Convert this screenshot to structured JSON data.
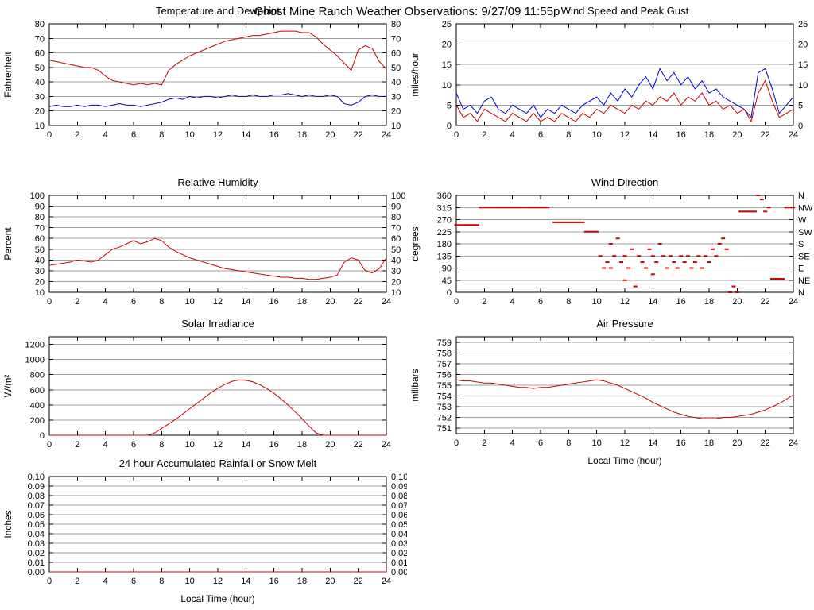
{
  "page": {
    "title": "Ghost Mine Ranch Weather Observations: 9/27/09 11:55p"
  },
  "colors": {
    "red_series": "#cc0000",
    "blue_series": "#0000b4",
    "grid": "#9f9f9f",
    "axis": "#000000"
  },
  "chart_data": [
    {
      "id": "temperature-dewpoint",
      "type": "line",
      "title": "Temperature and Dewpoint",
      "ylabel": "Fahrenheit",
      "xlabel": "",
      "xlim": [
        0,
        24
      ],
      "xticks": [
        0,
        2,
        4,
        6,
        8,
        10,
        12,
        14,
        16,
        18,
        20,
        22,
        24
      ],
      "ylim": [
        10,
        80
      ],
      "yticks": [
        10,
        20,
        30,
        40,
        50,
        60,
        70,
        80
      ],
      "right_labels": "mirror",
      "grid": true,
      "series": [
        {
          "name": "temperature",
          "color": "#cc0000",
          "x_start": 0,
          "x_step": 0.5,
          "y": [
            55,
            54,
            53,
            52,
            51,
            50,
            50,
            48,
            44,
            41,
            40,
            39,
            38,
            39,
            38,
            39,
            38,
            48,
            52,
            55,
            58,
            60,
            62,
            64,
            66,
            68,
            69,
            70,
            71,
            72,
            72,
            73,
            74,
            75,
            75,
            75,
            74,
            74,
            71,
            66,
            62,
            58,
            53,
            48,
            62,
            65,
            63,
            54,
            49
          ]
        },
        {
          "name": "dewpoint",
          "color": "#0000b4",
          "x_start": 0,
          "x_step": 0.5,
          "y": [
            23,
            24,
            23,
            23,
            24,
            23,
            24,
            24,
            23,
            24,
            25,
            24,
            24,
            23,
            24,
            25,
            26,
            28,
            29,
            28,
            30,
            29,
            30,
            30,
            29,
            30,
            31,
            30,
            30,
            31,
            30,
            30,
            31,
            31,
            32,
            31,
            30,
            31,
            30,
            30,
            31,
            30,
            25,
            24,
            26,
            30,
            31,
            30,
            30
          ]
        }
      ]
    },
    {
      "id": "wind-speed-gust",
      "type": "line",
      "title": "Wind Speed and Peak Gust",
      "ylabel": "miles/hour",
      "xlabel": "",
      "xlim": [
        0,
        24
      ],
      "xticks": [
        0,
        2,
        4,
        6,
        8,
        10,
        12,
        14,
        16,
        18,
        20,
        22,
        24
      ],
      "ylim": [
        0,
        25
      ],
      "yticks": [
        0,
        5,
        10,
        15,
        20,
        25
      ],
      "right_labels": "mirror",
      "grid": true,
      "series": [
        {
          "name": "peak-gust",
          "color": "#0000cc",
          "x_start": 0,
          "x_step": 0.5,
          "y": [
            8,
            4,
            5,
            3,
            6,
            7,
            4,
            3,
            5,
            4,
            3,
            5,
            2,
            4,
            3,
            5,
            4,
            3,
            5,
            6,
            7,
            5,
            8,
            6,
            9,
            7,
            10,
            12,
            9,
            14,
            11,
            13,
            10,
            12,
            9,
            11,
            8,
            9,
            7,
            6,
            5,
            4,
            2,
            13,
            14,
            9,
            3,
            5,
            7
          ]
        },
        {
          "name": "wind-speed",
          "color": "#cc0000",
          "x_start": 0,
          "x_step": 0.5,
          "y": [
            5,
            2,
            3,
            1,
            4,
            3,
            2,
            1,
            3,
            2,
            1,
            3,
            1,
            2,
            1,
            3,
            2,
            1,
            3,
            2,
            4,
            3,
            5,
            4,
            3,
            5,
            4,
            6,
            5,
            7,
            6,
            8,
            5,
            7,
            6,
            8,
            5,
            6,
            4,
            5,
            3,
            4,
            1,
            8,
            11,
            6,
            2,
            3,
            4
          ]
        }
      ]
    },
    {
      "id": "relative-humidity",
      "type": "line",
      "title": "Relative Humidity",
      "ylabel": "Percent",
      "xlabel": "",
      "xlim": [
        0,
        24
      ],
      "xticks": [
        0,
        2,
        4,
        6,
        8,
        10,
        12,
        14,
        16,
        18,
        20,
        22,
        24
      ],
      "ylim": [
        10,
        100
      ],
      "yticks": [
        10,
        20,
        30,
        40,
        50,
        60,
        70,
        80,
        90,
        100
      ],
      "right_labels": "mirror",
      "grid": true,
      "series": [
        {
          "name": "humidity",
          "color": "#cc0000",
          "x_start": 0,
          "x_step": 0.5,
          "y": [
            35,
            36,
            37,
            38,
            40,
            39,
            38,
            40,
            45,
            50,
            52,
            55,
            58,
            55,
            57,
            60,
            58,
            52,
            48,
            45,
            42,
            40,
            38,
            36,
            34,
            32,
            31,
            30,
            29,
            28,
            27,
            26,
            25,
            24,
            24,
            23,
            23,
            22,
            22,
            23,
            24,
            26,
            38,
            42,
            40,
            30,
            28,
            32,
            42
          ]
        }
      ]
    },
    {
      "id": "wind-direction",
      "type": "scatter",
      "title": "Wind Direction",
      "ylabel": "degrees",
      "xlabel": "",
      "xlim": [
        0,
        24
      ],
      "xticks": [
        0,
        2,
        4,
        6,
        8,
        10,
        12,
        14,
        16,
        18,
        20,
        22,
        24
      ],
      "ylim": [
        0,
        360
      ],
      "yticks": [
        0,
        45,
        90,
        135,
        180,
        225,
        270,
        315,
        360
      ],
      "right_labels": {
        "ticks": [
          360,
          315,
          270,
          225,
          180,
          135,
          90,
          45,
          0
        ],
        "labels": [
          "N",
          "NW",
          "W",
          "SW",
          "S",
          "SE",
          "E",
          "NE",
          "N"
        ]
      },
      "grid": true,
      "series": [
        {
          "name": "direction",
          "color": "#cc0000",
          "points": [
            [
              0,
              250
            ],
            [
              0.25,
              250
            ],
            [
              0.5,
              250
            ],
            [
              0.75,
              250
            ],
            [
              1,
              250
            ],
            [
              1.25,
              250
            ],
            [
              1.5,
              250
            ],
            [
              1.75,
              315
            ],
            [
              2,
              315
            ],
            [
              2.25,
              315
            ],
            [
              2.5,
              315
            ],
            [
              2.75,
              315
            ],
            [
              3,
              315
            ],
            [
              3.25,
              315
            ],
            [
              3.5,
              315
            ],
            [
              3.75,
              315
            ],
            [
              4,
              315
            ],
            [
              4.25,
              315
            ],
            [
              4.5,
              315
            ],
            [
              4.75,
              315
            ],
            [
              5,
              315
            ],
            [
              5.25,
              315
            ],
            [
              5.5,
              315
            ],
            [
              5.75,
              315
            ],
            [
              6,
              315
            ],
            [
              6.25,
              315
            ],
            [
              6.5,
              315
            ],
            [
              7,
              260
            ],
            [
              7.25,
              260
            ],
            [
              7.5,
              260
            ],
            [
              7.75,
              260
            ],
            [
              8,
              260
            ],
            [
              8.25,
              260
            ],
            [
              8.5,
              260
            ],
            [
              8.75,
              260
            ],
            [
              9,
              260
            ],
            [
              9.25,
              225
            ],
            [
              9.5,
              225
            ],
            [
              9.75,
              225
            ],
            [
              10,
              225
            ],
            [
              10.25,
              135
            ],
            [
              10.5,
              90
            ],
            [
              10.75,
              112
            ],
            [
              11,
              180
            ],
            [
              11,
              90
            ],
            [
              11.25,
              135
            ],
            [
              11.5,
              200
            ],
            [
              11.75,
              112
            ],
            [
              12,
              135
            ],
            [
              12,
              45
            ],
            [
              12.25,
              90
            ],
            [
              12.5,
              160
            ],
            [
              12.75,
              22
            ],
            [
              13,
              135
            ],
            [
              13.25,
              112
            ],
            [
              13.5,
              90
            ],
            [
              13.75,
              160
            ],
            [
              14,
              135
            ],
            [
              14,
              67
            ],
            [
              14.25,
              112
            ],
            [
              14.5,
              180
            ],
            [
              14.75,
              135
            ],
            [
              15,
              90
            ],
            [
              15.25,
              135
            ],
            [
              15.5,
              112
            ],
            [
              15.75,
              90
            ],
            [
              16,
              135
            ],
            [
              16.25,
              112
            ],
            [
              16.5,
              135
            ],
            [
              16.75,
              90
            ],
            [
              17,
              112
            ],
            [
              17.25,
              135
            ],
            [
              17.5,
              90
            ],
            [
              17.75,
              135
            ],
            [
              18,
              112
            ],
            [
              18.25,
              160
            ],
            [
              18.5,
              135
            ],
            [
              18.75,
              180
            ],
            [
              19,
              200
            ],
            [
              19.25,
              160
            ],
            [
              19.5,
              0
            ],
            [
              19.75,
              22
            ],
            [
              20,
              0
            ],
            [
              20.25,
              300
            ],
            [
              20.5,
              300
            ],
            [
              20.75,
              300
            ],
            [
              21,
              300
            ],
            [
              21.25,
              300
            ],
            [
              21.5,
              360
            ],
            [
              21.75,
              345
            ],
            [
              22,
              300
            ],
            [
              22.25,
              315
            ],
            [
              22.5,
              50
            ],
            [
              22.75,
              50
            ],
            [
              23,
              50
            ],
            [
              23.25,
              50
            ],
            [
              23.5,
              315
            ],
            [
              23.75,
              315
            ],
            [
              24,
              315
            ]
          ]
        }
      ]
    },
    {
      "id": "solar-irradiance",
      "type": "line",
      "title": "Solar Irradiance",
      "ylabel": "W/m²",
      "xlabel": "",
      "xlim": [
        0,
        24
      ],
      "xticks": [
        0,
        2,
        4,
        6,
        8,
        10,
        12,
        14,
        16,
        18,
        20,
        22,
        24
      ],
      "ylim": [
        0,
        1300
      ],
      "yticks": [
        0,
        200,
        400,
        600,
        800,
        1000,
        1200
      ],
      "right_labels": null,
      "grid": true,
      "series": [
        {
          "name": "irradiance",
          "color": "#cc0000",
          "x_start": 0,
          "x_step": 0.5,
          "y": [
            0,
            0,
            0,
            0,
            0,
            0,
            0,
            0,
            0,
            0,
            0,
            0,
            0,
            0,
            0,
            30,
            90,
            150,
            210,
            280,
            350,
            420,
            490,
            560,
            620,
            670,
            710,
            730,
            725,
            705,
            665,
            615,
            555,
            480,
            400,
            310,
            220,
            120,
            30,
            0,
            0,
            0,
            0,
            0,
            0,
            0,
            0,
            0,
            0
          ]
        }
      ]
    },
    {
      "id": "air-pressure",
      "type": "line",
      "title": "Air Pressure",
      "ylabel": "milibars",
      "xlabel": "Local Time (hour)",
      "xlim": [
        0,
        24
      ],
      "xticks": [
        0,
        2,
        4,
        6,
        8,
        10,
        12,
        14,
        16,
        18,
        20,
        22,
        24
      ],
      "ylim": [
        750.5,
        759.5
      ],
      "yticks": [
        751,
        752,
        753,
        754,
        755,
        756,
        757,
        758,
        759
      ],
      "right_labels": null,
      "grid": true,
      "series": [
        {
          "name": "pressure",
          "color": "#cc0000",
          "x_start": 0,
          "x_step": 0.5,
          "y": [
            755.5,
            755.4,
            755.4,
            755.3,
            755.2,
            755.2,
            755.1,
            755.0,
            754.9,
            754.8,
            754.8,
            754.7,
            754.8,
            754.8,
            754.9,
            755.0,
            755.1,
            755.2,
            755.3,
            755.4,
            755.5,
            755.4,
            755.2,
            755.0,
            754.7,
            754.4,
            754.1,
            753.8,
            753.4,
            753.1,
            752.8,
            752.5,
            752.3,
            752.1,
            752.0,
            751.9,
            751.9,
            751.9,
            752.0,
            752.0,
            752.1,
            752.2,
            752.3,
            752.5,
            752.7,
            753.0,
            753.3,
            753.7,
            754.1
          ]
        }
      ]
    },
    {
      "id": "rainfall",
      "type": "line",
      "title": "24 hour Accumulated Rainfall or Snow Melt",
      "ylabel": "Inches",
      "xlabel": "Local Time (hour)",
      "xlim": [
        0,
        24
      ],
      "xticks": [
        0,
        2,
        4,
        6,
        8,
        10,
        12,
        14,
        16,
        18,
        20,
        22,
        24
      ],
      "ylim": [
        0,
        0.1
      ],
      "yticks": [
        0,
        0.01,
        0.02,
        0.03,
        0.04,
        0.05,
        0.06,
        0.07,
        0.08,
        0.09,
        0.1
      ],
      "ytick_labels": [
        "0.00",
        "0.01",
        "0.02",
        "0.03",
        "0.04",
        "0.05",
        "0.06",
        "0.07",
        "0.08",
        "0.09",
        "0.10"
      ],
      "right_labels": "mirror",
      "grid": true,
      "series": [
        {
          "name": "rainfall",
          "color": "#cc0000",
          "x_start": 0,
          "x_step": 24,
          "y": [
            0,
            0
          ]
        }
      ]
    }
  ]
}
